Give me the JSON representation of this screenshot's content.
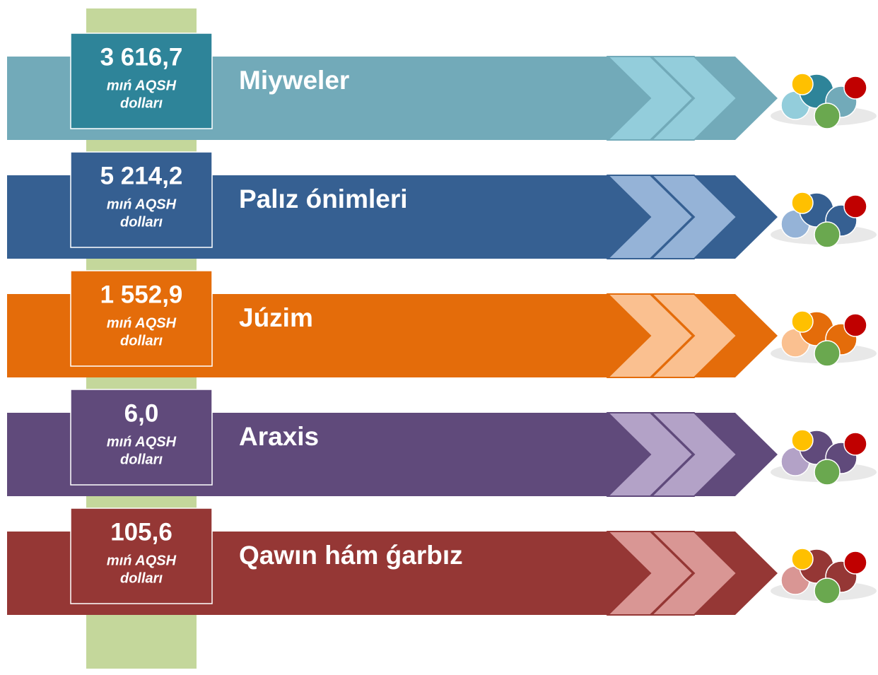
{
  "rows": [
    {
      "value": "3 616,7",
      "unit": [
        "mıń AQSH",
        "dolları"
      ],
      "label": "Miyweler",
      "band": "#72aab9",
      "box": "#2e8499",
      "chevron": "#93cddb"
    },
    {
      "value": "5 214,2",
      "unit": [
        "mıń AQSH",
        "dolları"
      ],
      "label": "Palız ónimleri",
      "band": "#366092",
      "box": "#355f91",
      "chevron": "#95b3d7"
    },
    {
      "value": "1 552,9",
      "unit": [
        "mıń AQSH",
        "dolları"
      ],
      "label": "Júzim",
      "band": "#e46c0a",
      "box": "#e46c0a",
      "chevron": "#fac090"
    },
    {
      "value": "6,0",
      "unit": [
        "mıń AQSH",
        "dolları"
      ],
      "label": "Araxis",
      "band": "#604a7b",
      "box": "#604a7b",
      "chevron": "#b3a2c7"
    },
    {
      "value": "105,6",
      "unit": [
        "mıń AQSH",
        "dolları"
      ],
      "label": "Qawın hám ǵarbız",
      "band": "#953735",
      "box": "#953735",
      "chevron": "#d99694"
    }
  ]
}
